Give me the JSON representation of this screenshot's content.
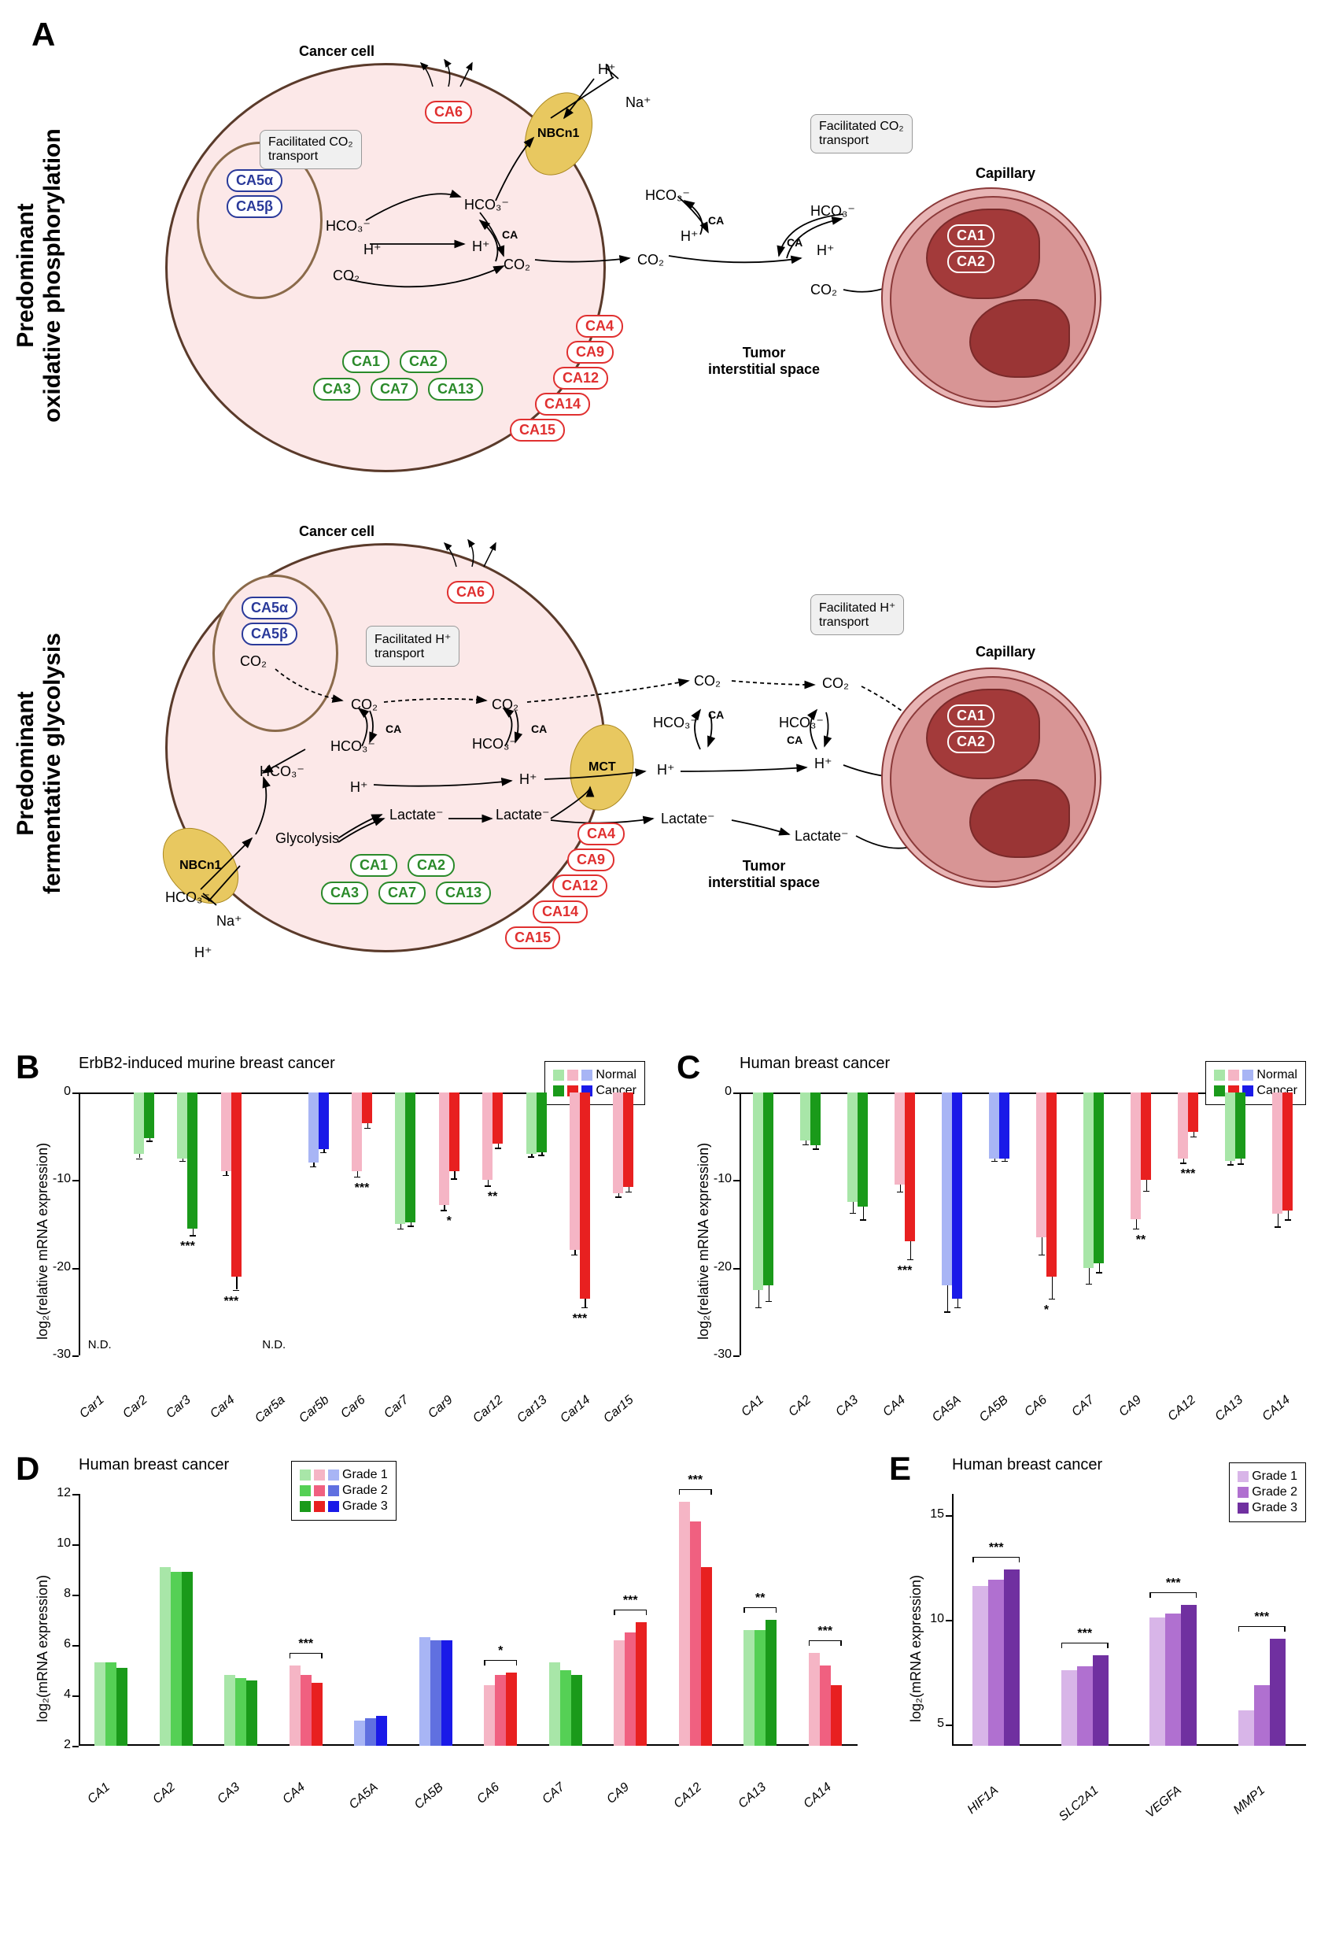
{
  "panelA": {
    "label": "A",
    "row1": {
      "vertical_label": "Predominant\noxidative phosphorylation",
      "cancer_cell_label": "Cancer cell",
      "capillary_label": "Capillary",
      "interstitial_label": "Tumor\ninterstitial space",
      "mito_badges": [
        "CA5α",
        "CA5β"
      ],
      "secreted_badge": "CA6",
      "cytosolic_badges": [
        "CA1",
        "CA2",
        "CA3",
        "CA7",
        "CA13"
      ],
      "membrane_badges": [
        "CA4",
        "CA9",
        "CA12",
        "CA14",
        "CA15"
      ],
      "rbc_badges": [
        "CA1",
        "CA2"
      ],
      "transporter_label": "NBCn1",
      "callout_text": "Facilitated CO₂\ntransport",
      "species": {
        "HCO3": "HCO₃⁻",
        "H": "H⁺",
        "CO2": "CO₂",
        "Na": "Na⁺",
        "CA": "CA"
      }
    },
    "row2": {
      "vertical_label": "Predominant\nfermentative glycolysis",
      "cancer_cell_label": "Cancer cell",
      "capillary_label": "Capillary",
      "interstitial_label": "Tumor\ninterstitial space",
      "mito_badges": [
        "CA5α",
        "CA5β"
      ],
      "secreted_badge": "CA6",
      "cytosolic_badges": [
        "CA1",
        "CA2",
        "CA3",
        "CA7",
        "CA13"
      ],
      "membrane_badges": [
        "CA4",
        "CA9",
        "CA12",
        "CA14",
        "CA15"
      ],
      "rbc_badges": [
        "CA1",
        "CA2"
      ],
      "nbcn1_label": "NBCn1",
      "mct_label": "MCT",
      "callout_text": "Facilitated H⁺\ntransport",
      "glycolysis_label": "Glycolysis",
      "species": {
        "HCO3": "HCO₃⁻",
        "H": "H⁺",
        "CO2": "CO₂",
        "Na": "Na⁺",
        "Lactate": "Lactate⁻",
        "CA": "CA"
      }
    }
  },
  "colors": {
    "light_green": "#a8e6a8",
    "dark_green": "#1a9a1a",
    "light_pink": "#f5b5c5",
    "red": "#e82020",
    "light_blue": "#a8b5f5",
    "blue": "#1a1ae8",
    "purple1": "#d8b5e8",
    "purple2": "#b070d0",
    "purple3": "#7030a0"
  },
  "panelB": {
    "label": "B",
    "title": "ErbB2-induced murine breast cancer",
    "ylabel": "log₂(relative mRNA expression)",
    "ylim": [
      -30,
      0
    ],
    "ytick_step": 10,
    "legend": [
      "Normal",
      "Cancer"
    ],
    "nd_label": "N.D.",
    "genes": [
      {
        "name": "Car1",
        "type": "green",
        "nd": true
      },
      {
        "name": "Car2",
        "type": "green",
        "normal": -7,
        "cancer": -5.2,
        "err_n": 0.5,
        "err_c": 0.3
      },
      {
        "name": "Car3",
        "type": "green",
        "normal": -7.5,
        "cancer": -15.5,
        "err_n": 0.3,
        "err_c": 0.8,
        "sig": "***"
      },
      {
        "name": "Car4",
        "type": "red",
        "normal": -9,
        "cancer": -21,
        "err_n": 0.4,
        "err_c": 1.5,
        "sig": "***"
      },
      {
        "name": "Car5a",
        "type": "blue",
        "nd": true
      },
      {
        "name": "Car5b",
        "type": "blue",
        "normal": -8,
        "cancer": -6.5,
        "err_n": 0.4,
        "err_c": 0.3
      },
      {
        "name": "Car6",
        "type": "red",
        "normal": -9,
        "cancer": -3.5,
        "err_n": 0.6,
        "err_c": 0.5,
        "sig": "***"
      },
      {
        "name": "Car7",
        "type": "green",
        "normal": -15,
        "cancer": -14.8,
        "err_n": 0.5,
        "err_c": 0.4
      },
      {
        "name": "Car9",
        "type": "red",
        "normal": -12.8,
        "cancer": -9,
        "err_n": 0.6,
        "err_c": 0.8,
        "sig": "*"
      },
      {
        "name": "Car12",
        "type": "red",
        "normal": -10,
        "cancer": -5.8,
        "err_n": 0.6,
        "err_c": 0.5,
        "sig": "**"
      },
      {
        "name": "Car13",
        "type": "green",
        "normal": -7,
        "cancer": -6.8,
        "err_n": 0.3,
        "err_c": 0.3
      },
      {
        "name": "Car14",
        "type": "red",
        "normal": -18,
        "cancer": -23.5,
        "err_n": 0.5,
        "err_c": 1,
        "sig": "***"
      },
      {
        "name": "Car15",
        "type": "red",
        "normal": -11.5,
        "cancer": -10.8,
        "err_n": 0.4,
        "err_c": 0.5
      }
    ]
  },
  "panelC": {
    "label": "C",
    "title": "Human breast cancer",
    "ylabel": "log₂(relative mRNA expression)",
    "ylim": [
      -30,
      0
    ],
    "ytick_step": 10,
    "legend": [
      "Normal",
      "Cancer"
    ],
    "genes": [
      {
        "name": "CA1",
        "type": "green",
        "normal": -22.5,
        "cancer": -22,
        "err_n": 2,
        "err_c": 1.8
      },
      {
        "name": "CA2",
        "type": "green",
        "normal": -5.5,
        "cancer": -6,
        "err_n": 0.4,
        "err_c": 0.4
      },
      {
        "name": "CA3",
        "type": "green",
        "normal": -12.5,
        "cancer": -13,
        "err_n": 1.2,
        "err_c": 1.5
      },
      {
        "name": "CA4",
        "type": "red",
        "normal": -10.5,
        "cancer": -17,
        "err_n": 0.8,
        "err_c": 2,
        "sig": "***"
      },
      {
        "name": "CA5A",
        "type": "blue",
        "normal": -22,
        "cancer": -23.5,
        "err_n": 3,
        "err_c": 1
      },
      {
        "name": "CA5B",
        "type": "blue",
        "normal": -7.5,
        "cancer": -7.5,
        "err_n": 0.3,
        "err_c": 0.3
      },
      {
        "name": "CA6",
        "type": "red",
        "normal": -16.5,
        "cancer": -21,
        "err_n": 2,
        "err_c": 2.5,
        "sig": "*"
      },
      {
        "name": "CA7",
        "type": "green",
        "normal": -20,
        "cancer": -19.5,
        "err_n": 1.8,
        "err_c": 1
      },
      {
        "name": "CA9",
        "type": "red",
        "normal": -14.5,
        "cancer": -10,
        "err_n": 1,
        "err_c": 1.2,
        "sig": "**"
      },
      {
        "name": "CA12",
        "type": "red",
        "normal": -7.5,
        "cancer": -4.5,
        "err_n": 0.5,
        "err_c": 0.5,
        "sig": "***"
      },
      {
        "name": "CA13",
        "type": "green",
        "normal": -7.8,
        "cancer": -7.5,
        "err_n": 0.4,
        "err_c": 0.6
      },
      {
        "name": "CA14",
        "type": "red",
        "normal": -13.8,
        "cancer": -13.5,
        "err_n": 1.5,
        "err_c": 1
      }
    ]
  },
  "panelD": {
    "label": "D",
    "title": "Human breast cancer",
    "ylabel": "log₂(mRNA expression)",
    "ylim": [
      2,
      12
    ],
    "ytick_step": 2,
    "legend": [
      "Grade 1",
      "Grade 2",
      "Grade 3"
    ],
    "genes": [
      {
        "name": "CA1",
        "type": "green",
        "g1": 5.3,
        "g2": 5.3,
        "g3": 5.1
      },
      {
        "name": "CA2",
        "type": "green",
        "g1": 9.1,
        "g2": 8.9,
        "g3": 8.9
      },
      {
        "name": "CA3",
        "type": "green",
        "g1": 4.8,
        "g2": 4.7,
        "g3": 4.6
      },
      {
        "name": "CA4",
        "type": "red",
        "g1": 5.2,
        "g2": 4.8,
        "g3": 4.5,
        "sig": "***"
      },
      {
        "name": "CA5A",
        "type": "blue",
        "g1": 3.0,
        "g2": 3.1,
        "g3": 3.2
      },
      {
        "name": "CA5B",
        "type": "blue",
        "g1": 6.3,
        "g2": 6.2,
        "g3": 6.2
      },
      {
        "name": "CA6",
        "type": "red",
        "g1": 4.4,
        "g2": 4.8,
        "g3": 4.9,
        "sig": "*"
      },
      {
        "name": "CA7",
        "type": "green",
        "g1": 5.3,
        "g2": 5.0,
        "g3": 4.8
      },
      {
        "name": "CA9",
        "type": "red",
        "g1": 6.2,
        "g2": 6.5,
        "g3": 6.9,
        "sig": "***"
      },
      {
        "name": "CA12",
        "type": "red",
        "g1": 11.7,
        "g2": 10.9,
        "g3": 9.1,
        "sig": "***"
      },
      {
        "name": "CA13",
        "type": "green",
        "g1": 6.6,
        "g2": 6.6,
        "g3": 7.0,
        "sig": "**"
      },
      {
        "name": "CA14",
        "type": "red",
        "g1": 5.7,
        "g2": 5.2,
        "g3": 4.4,
        "sig": "***"
      }
    ]
  },
  "panelE": {
    "label": "E",
    "title": "Human breast cancer",
    "ylabel": "log₂(mRNA expression)",
    "ylim": [
      4,
      16
    ],
    "ytick_step": 5,
    "yticks": [
      5,
      10,
      15
    ],
    "legend": [
      "Grade 1",
      "Grade 2",
      "Grade 3"
    ],
    "genes": [
      {
        "name": "HIF1A",
        "g1": 11.6,
        "g2": 11.9,
        "g3": 12.4,
        "sig": "***"
      },
      {
        "name": "SLC2A1",
        "g1": 7.6,
        "g2": 7.8,
        "g3": 8.3,
        "sig": "***"
      },
      {
        "name": "VEGFA",
        "g1": 10.1,
        "g2": 10.3,
        "g3": 10.7,
        "sig": "***"
      },
      {
        "name": "MMP1",
        "g1": 5.7,
        "g2": 6.9,
        "g3": 9.1,
        "sig": "***"
      }
    ]
  }
}
